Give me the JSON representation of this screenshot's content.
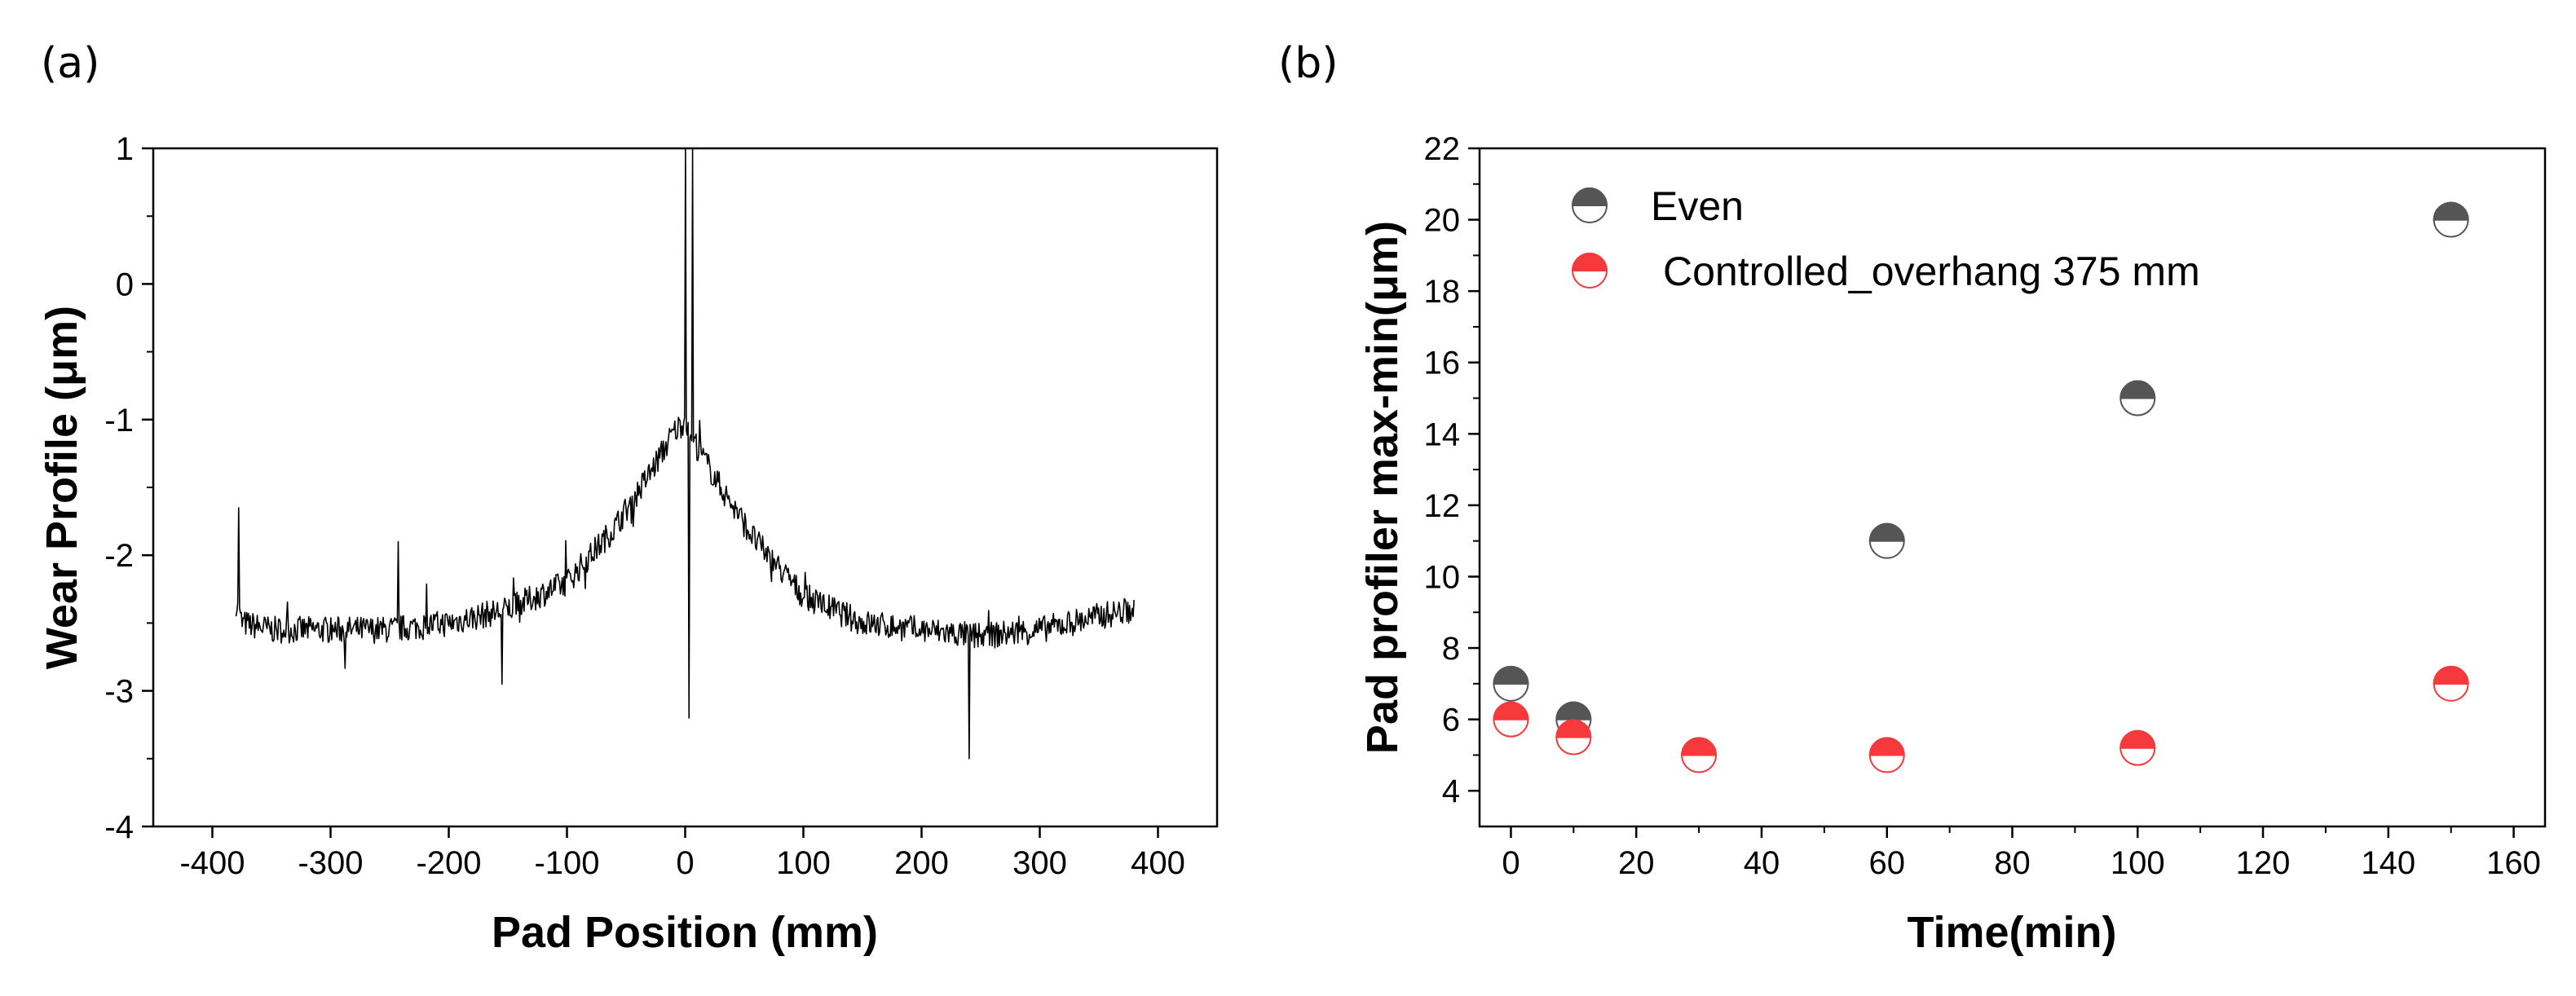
{
  "chart_data": [
    {
      "panel_label": "(a)",
      "type": "line",
      "title": "",
      "xlabel": "Pad Position (mm)",
      "ylabel": "Wear Profile (μm)",
      "xlim": [
        -450,
        450
      ],
      "ylim": [
        -4,
        1
      ],
      "xticks": [
        "-400",
        "-300",
        "-200",
        "-100",
        "0",
        "100",
        "200",
        "300",
        "400"
      ],
      "yticks": [
        "-4",
        "-3",
        "-2",
        "-1",
        "0",
        "1"
      ],
      "grid": false,
      "line_color": "#000000",
      "noise_amplitude": 0.1,
      "series": [
        {
          "name": "Wear Profile",
          "x": [
            -380,
            -375,
            -350,
            -300,
            -250,
            -200,
            -150,
            -100,
            -60,
            -30,
            -10,
            0,
            10,
            30,
            60,
            100,
            150,
            200,
            250,
            300,
            350,
            380
          ],
          "y": [
            -2.35,
            -2.5,
            -2.55,
            -2.55,
            -2.55,
            -2.5,
            -2.4,
            -2.2,
            -1.8,
            -1.4,
            -1.1,
            -1.0,
            -1.2,
            -1.5,
            -1.9,
            -2.3,
            -2.5,
            -2.55,
            -2.6,
            -2.55,
            -2.45,
            -2.4
          ]
        }
      ],
      "spikes": [
        {
          "x": -378,
          "y": -1.65
        },
        {
          "x": -243,
          "y": -1.9
        },
        {
          "x": -155,
          "y": -2.95
        },
        {
          "x": 0,
          "y": 1.0
        },
        {
          "x": 3,
          "y": -3.2
        },
        {
          "x": 6,
          "y": 1.0
        },
        {
          "x": 240,
          "y": -3.5
        }
      ]
    },
    {
      "panel_label": "(b)",
      "type": "scatter",
      "title": "",
      "xlabel": "Time(min)",
      "ylabel": "Pad profiler max-min(μm)",
      "xlim": [
        -5,
        165
      ],
      "ylim": [
        3,
        22
      ],
      "xticks": [
        "0",
        "20",
        "40",
        "60",
        "80",
        "100",
        "120",
        "140",
        "160"
      ],
      "yticks": [
        "4",
        "6",
        "8",
        "10",
        "12",
        "14",
        "16",
        "18",
        "20",
        "22"
      ],
      "grid": false,
      "legend_position": "top-left",
      "series": [
        {
          "name": "Even",
          "color": "#555555",
          "x": [
            0,
            10,
            60,
            100,
            150
          ],
          "y": [
            7,
            6,
            11,
            15,
            20
          ]
        },
        {
          "name": "Controlled_overhang 375 mm",
          "color": "#f5393d",
          "x": [
            0,
            10,
            30,
            60,
            100,
            150
          ],
          "y": [
            6,
            5.5,
            5,
            5,
            5.2,
            7
          ]
        }
      ]
    }
  ]
}
